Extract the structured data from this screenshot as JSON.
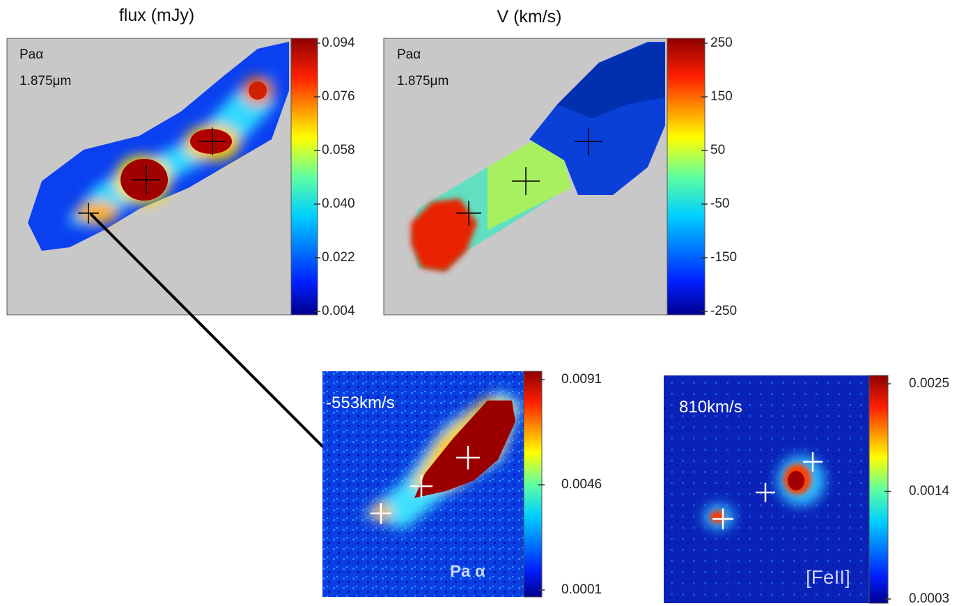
{
  "panels": [
    {
      "title": "flux (mJy)",
      "line": "Paα",
      "wavelength": "1.875μm",
      "lim": [
        0.004,
        0.094
      ],
      "ticks": [
        0.094,
        0.076,
        0.058,
        {
          "value": 0.04,
          "label": "0.040"
        },
        0.022,
        0.004
      ]
    },
    {
      "title": "V (km/s)",
      "line": "Paα",
      "wavelength": "1.875μm",
      "lim": [
        -250,
        250
      ],
      "ticks": [
        250,
        150,
        50,
        -50,
        -150,
        -250
      ]
    },
    {
      "velocity": "-553km/s",
      "line": "Pa α",
      "lim": [
        0.0001,
        0.0091
      ],
      "ticks": [
        0.0091,
        0.0046,
        0.0001
      ]
    },
    {
      "velocity": "810km/s",
      "line": "[FeII]",
      "lim": [
        0.0003,
        0.0025
      ],
      "ticks": [
        0.0025,
        0.0014,
        0.0003
      ]
    }
  ]
}
